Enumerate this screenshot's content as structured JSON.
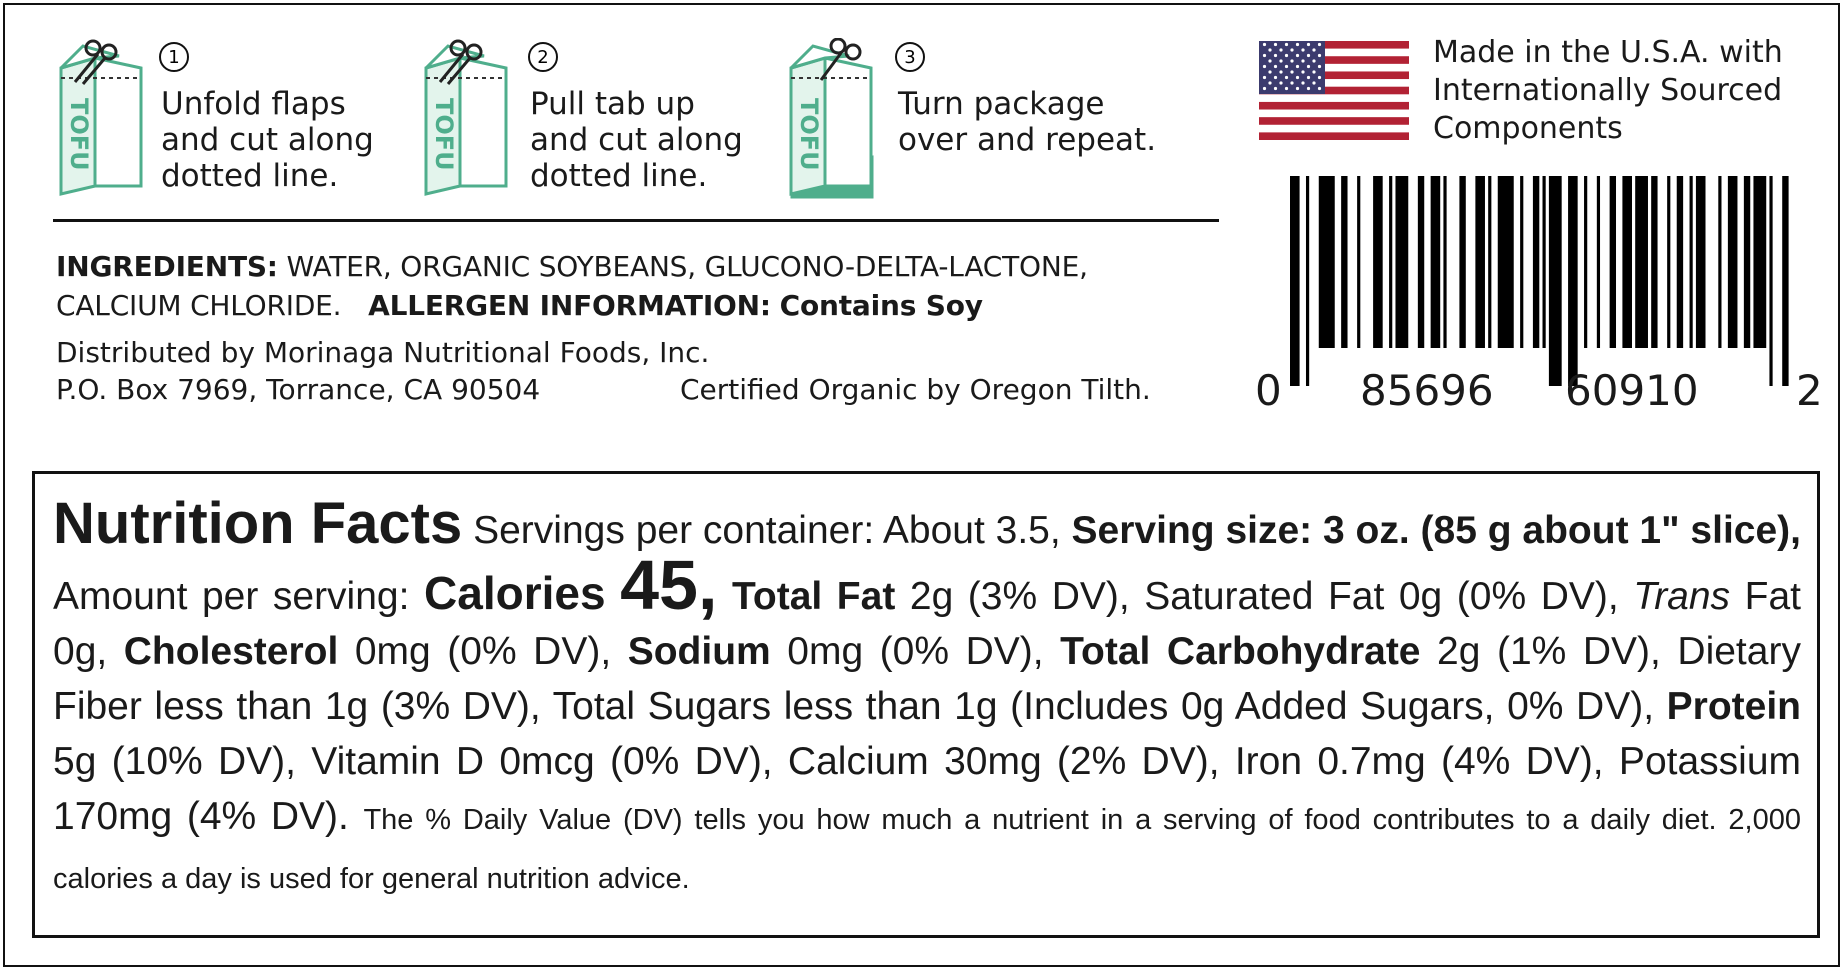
{
  "steps": [
    {
      "number": "1",
      "lines": [
        "Unfold flaps",
        "and cut along",
        "dotted line."
      ]
    },
    {
      "number": "2",
      "lines": [
        "Pull tab up",
        "and cut along",
        "dotted line."
      ]
    },
    {
      "number": "3",
      "lines": [
        "Turn package",
        "over and repeat."
      ]
    }
  ],
  "icon_label": "TOFU",
  "origin": {
    "lines": [
      "Made in the U.S.A. with",
      "Internationally Sourced",
      "Components"
    ]
  },
  "ingredients": {
    "label": "INGREDIENTS:",
    "lines": [
      "WATER, ORGANIC SOYBEANS, GLUCONO-DELTA-LACTONE,",
      "CALCIUM CHLORIDE."
    ],
    "allergen_label": "ALLERGEN INFORMATION:",
    "allergen": "Contains Soy"
  },
  "distributor": {
    "name": "Distributed by Morinaga Nutritional Foods, Inc.",
    "address": "P.O. Box 7969, Torrance, CA 90504",
    "certification": "Certified Organic by Oregon Tilth."
  },
  "barcode": {
    "digits": [
      "0",
      "85696",
      "60910",
      "2"
    ]
  },
  "nutrition": {
    "segments": [
      {
        "text": "Nutrition Facts",
        "style": "title"
      },
      {
        "text": "Servings per container: About 3.5,",
        "style": "normal"
      },
      {
        "text": "Serving size: 3 oz. (85 g about 1\" slice),",
        "style": "bold"
      },
      {
        "text": "Amount per serving:",
        "style": "normal"
      },
      {
        "text": "Calories",
        "style": "large-bold"
      },
      {
        "text": "45,",
        "style": "huge-bold"
      },
      {
        "text": "Total Fat",
        "style": "bold"
      },
      {
        "text": "2g (3% DV), Saturated Fat 0g (0% DV),",
        "style": "normal"
      },
      {
        "text": "Trans",
        "style": "italic"
      },
      {
        "text": "Fat 0g,",
        "style": "normal"
      },
      {
        "text": "Cholesterol",
        "style": "bold"
      },
      {
        "text": "0mg (0% DV),",
        "style": "normal"
      },
      {
        "text": "Sodium",
        "style": "bold"
      },
      {
        "text": "0mg (0% DV),",
        "style": "normal"
      },
      {
        "text": "Total Carbohydrate",
        "style": "bold"
      },
      {
        "text": "2g (1% DV), Dietary Fiber less than 1g (3% DV), Total Sugars less than 1g (Includes 0g Added Sugars, 0% DV),",
        "style": "normal"
      },
      {
        "text": "Protein",
        "style": "bold"
      },
      {
        "text": "5g (10% DV), Vitamin D 0mcg (0% DV), Calcium 30mg (2% DV), Iron 0.7mg (4% DV), Potassium 170mg (4% DV).",
        "style": "normal"
      },
      {
        "text": "The % Daily Value (DV) tells you how much a nutrient in a serving of food contributes to a daily diet. 2,000 calories a day is used for general nutrition advice.",
        "style": "small"
      }
    ]
  }
}
